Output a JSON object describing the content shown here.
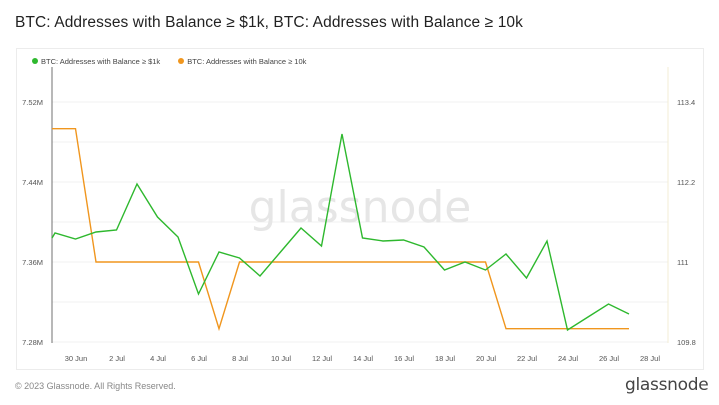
{
  "title": "BTC: Addresses with Balance ≥ $1k, BTC: Addresses with Balance ≥ 10k",
  "legend": [
    {
      "label": "BTC: Addresses with Balance ≥ $1k",
      "color": "#2eb82e"
    },
    {
      "label": "BTC: Addresses with Balance ≥ 10k",
      "color": "#f0961e"
    }
  ],
  "footer": "© 2023 Glassnode. All Rights Reserved.",
  "logo": "glassnode",
  "watermark": "glassnode",
  "chart_data": {
    "type": "line",
    "title": "BTC: Addresses with Balance ≥ $1k, BTC: Addresses with Balance ≥ 10k",
    "xlabel": "",
    "x": [
      "29 Jun",
      "30 Jun",
      "1 Jul",
      "2 Jul",
      "3 Jul",
      "4 Jul",
      "5 Jul",
      "6 Jul",
      "7 Jul",
      "8 Jul",
      "9 Jul",
      "10 Jul",
      "11 Jul",
      "12 Jul",
      "13 Jul",
      "14 Jul",
      "15 Jul",
      "16 Jul",
      "17 Jul",
      "18 Jul",
      "19 Jul",
      "20 Jul",
      "21 Jul",
      "22 Jul",
      "23 Jul",
      "24 Jul",
      "25 Jul",
      "26 Jul",
      "27 Jul"
    ],
    "x_ticks": [
      "30 Jun",
      "2 Jul",
      "4 Jul",
      "6 Jul",
      "8 Jul",
      "10 Jul",
      "12 Jul",
      "14 Jul",
      "16 Jul",
      "18 Jul",
      "20 Jul",
      "22 Jul",
      "24 Jul",
      "26 Jul",
      "28 Jul"
    ],
    "series": [
      {
        "name": "BTC: Addresses with Balance ≥ $1k",
        "axis": "left",
        "color": "#2eb82e",
        "values": [
          7.389,
          7.383,
          7.39,
          7.392,
          7.438,
          7.405,
          7.385,
          7.328,
          7.37,
          7.364,
          7.346,
          7.37,
          7.394,
          7.376,
          7.488,
          7.384,
          7.381,
          7.382,
          7.375,
          7.352,
          7.36,
          7.352,
          7.368,
          7.344,
          7.381,
          7.292,
          7.305,
          7.318,
          7.308
        ]
      },
      {
        "name": "BTC: Addresses with Balance ≥ 10k",
        "axis": "right",
        "color": "#f0961e",
        "values": [
          113,
          113,
          111,
          111,
          111,
          111,
          111,
          111,
          110,
          111,
          111,
          111,
          111,
          111,
          111,
          111,
          111,
          111,
          111,
          111,
          111,
          111,
          110,
          110,
          110,
          110,
          110,
          110,
          110
        ]
      }
    ],
    "y_left": {
      "label": "",
      "ticks": [
        "7.28M",
        "7.36M",
        "7.44M",
        "7.52M"
      ],
      "range": [
        7.28,
        7.52
      ],
      "unit": "M"
    },
    "y_right": {
      "label": "",
      "ticks": [
        "109.8",
        "111",
        "112.2",
        "113.4"
      ],
      "range": [
        109.8,
        113.4
      ]
    },
    "grid": true,
    "legend_position": "top-left"
  }
}
